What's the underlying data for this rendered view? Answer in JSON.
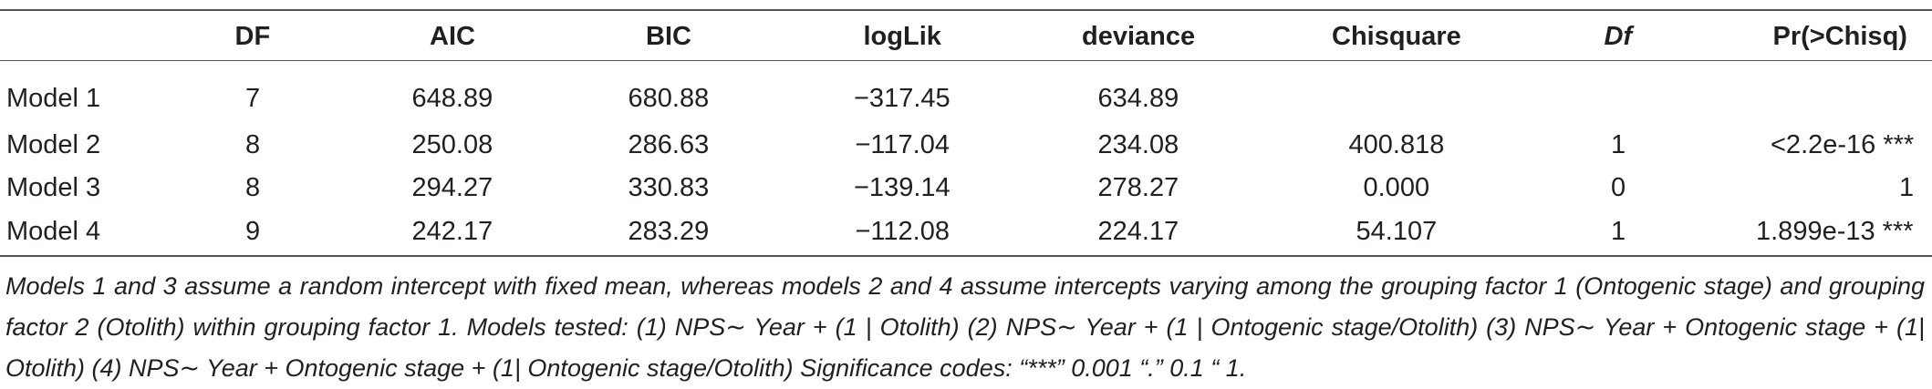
{
  "table": {
    "header": [
      "DF",
      "AIC",
      "BIC",
      "logLik",
      "deviance",
      "Chisquare",
      "Df",
      "Pr(>Chisq)"
    ],
    "rows": [
      {
        "label": "Model 1",
        "cells": [
          "7",
          "648.89",
          "680.88",
          "−317.45",
          "634.89"
        ]
      },
      {
        "label": "Model 2",
        "cells": [
          "8",
          "250.08",
          "286.63",
          "−117.04",
          "234.08",
          "400.818",
          "1",
          "<2.2e-16 ***"
        ]
      },
      {
        "label": "Model 3",
        "cells": [
          "8",
          "294.27",
          "330.83",
          "−139.14",
          "278.27",
          "0.000",
          "0",
          "1"
        ]
      },
      {
        "label": "Model 4",
        "cells": [
          "9",
          "242.17",
          "283.29",
          "−112.08",
          "224.17",
          "54.107",
          "1",
          "1.899e-13 ***"
        ]
      }
    ]
  },
  "caption": "Models 1 and 3 assume a random intercept with fixed mean, whereas models 2 and 4 assume intercepts varying among the grouping factor 1 (Ontogenic stage) and grouping factor 2 (Otolith) within grouping factor 1. Models tested: (1) NPS∼ Year + (1 | Otolith) (2) NPS∼ Year + (1 | Ontogenic stage/Otolith) (3) NPS∼ Year + Ontogenic stage + (1| Otolith) (4) NPS∼ Year + Ontogenic stage + (1| Ontogenic stage/Otolith) Significance codes: “***” 0.001 “.” 0.1 “ 1."
}
